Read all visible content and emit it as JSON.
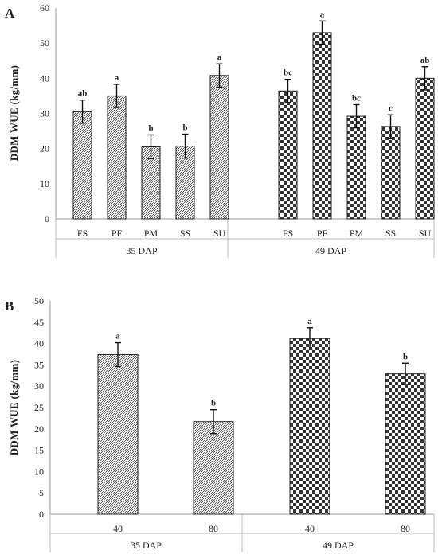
{
  "chart_data": [
    {
      "panel": "A",
      "type": "bar",
      "ylabel": "DDM WUE (kg/mm)",
      "ylim": [
        0,
        60
      ],
      "yticks": [
        0,
        10,
        20,
        30,
        40,
        50,
        60
      ],
      "groups": [
        {
          "label": "35 DAP",
          "pattern": "hatch",
          "categories": [
            "FS",
            "PF",
            "PM",
            "SS",
            "SU"
          ],
          "values": [
            30.5,
            35.0,
            20.5,
            20.7,
            40.8
          ],
          "errors": [
            3.3,
            3.3,
            3.4,
            3.4,
            3.3
          ],
          "letters": [
            "ab",
            "a",
            "b",
            "b",
            "a"
          ]
        },
        {
          "label": "49 DAP",
          "pattern": "checker",
          "categories": [
            "FS",
            "PF",
            "PM",
            "SS",
            "SU"
          ],
          "values": [
            36.4,
            53.0,
            29.2,
            26.3,
            40.0
          ],
          "errors": [
            3.3,
            3.3,
            3.3,
            3.3,
            3.3
          ],
          "letters": [
            "bc",
            "a",
            "bc",
            "c",
            "ab"
          ]
        }
      ]
    },
    {
      "panel": "B",
      "type": "bar",
      "ylabel": "DDM WUE (kg/mm)",
      "ylim": [
        0,
        50
      ],
      "yticks": [
        0,
        5,
        10,
        15,
        20,
        25,
        30,
        35,
        40,
        45,
        50
      ],
      "groups": [
        {
          "label": "35 DAP",
          "pattern": "hatch",
          "categories": [
            "40",
            "80"
          ],
          "values": [
            37.4,
            21.7
          ],
          "errors": [
            2.8,
            2.8
          ],
          "letters": [
            "a",
            "b"
          ]
        },
        {
          "label": "49 DAP",
          "pattern": "checker",
          "categories": [
            "40",
            "80"
          ],
          "values": [
            41.2,
            32.9
          ],
          "errors": [
            2.5,
            2.5
          ],
          "letters": [
            "a",
            "b"
          ]
        }
      ]
    }
  ]
}
